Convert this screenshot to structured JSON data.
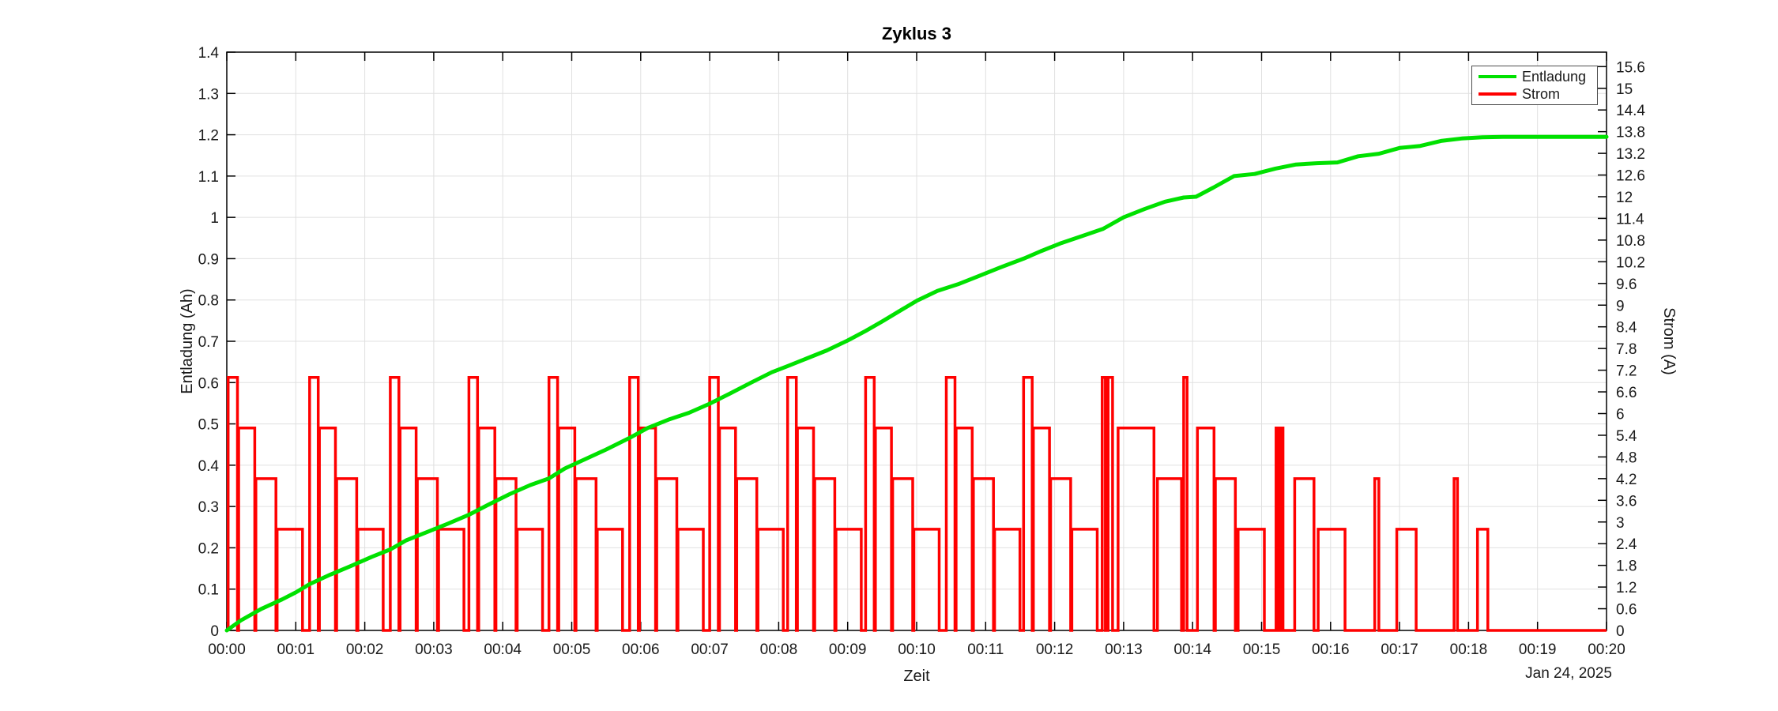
{
  "chart_data": {
    "type": "line",
    "title": "Zyklus 3",
    "xlabel": "Zeit",
    "x_date_annotation": "Jan 24, 2025",
    "ylabel_left": "Entladung (Ah)",
    "ylabel_right": "Strom (A)",
    "x_range_minutes": [
      0,
      20
    ],
    "y_left_range_ah": [
      0,
      1.4
    ],
    "y_right_range_a": [
      0,
      16
    ],
    "grid": true,
    "legend": {
      "position": "top-right",
      "items": [
        {
          "label": "Entladung",
          "color": "#00e100"
        },
        {
          "label": "Strom",
          "color": "#ff0000"
        }
      ]
    },
    "x_ticks": [
      [
        0,
        "00:00"
      ],
      [
        1,
        "00:01"
      ],
      [
        2,
        "00:02"
      ],
      [
        3,
        "00:03"
      ],
      [
        4,
        "00:04"
      ],
      [
        5,
        "00:05"
      ],
      [
        6,
        "00:06"
      ],
      [
        7,
        "00:07"
      ],
      [
        8,
        "00:08"
      ],
      [
        9,
        "00:09"
      ],
      [
        10,
        "00:10"
      ],
      [
        11,
        "00:11"
      ],
      [
        12,
        "00:12"
      ],
      [
        13,
        "00:13"
      ],
      [
        14,
        "00:14"
      ],
      [
        15,
        "00:15"
      ],
      [
        16,
        "00:16"
      ],
      [
        17,
        "00:17"
      ],
      [
        18,
        "00:18"
      ],
      [
        19,
        "00:19"
      ],
      [
        20,
        "00:20"
      ]
    ],
    "y_left_ticks": [
      [
        0,
        "0"
      ],
      [
        0.1,
        "0.1"
      ],
      [
        0.2,
        "0.2"
      ],
      [
        0.3,
        "0.3"
      ],
      [
        0.4,
        "0.4"
      ],
      [
        0.5,
        "0.5"
      ],
      [
        0.6,
        "0.6"
      ],
      [
        0.7,
        "0.7"
      ],
      [
        0.8,
        "0.8"
      ],
      [
        0.9,
        "0.9"
      ],
      [
        1,
        "1"
      ],
      [
        1.1,
        "1.1"
      ],
      [
        1.2,
        "1.2"
      ],
      [
        1.3,
        "1.3"
      ],
      [
        1.4,
        "1.4"
      ]
    ],
    "y_right_ticks": [
      [
        0,
        "0"
      ],
      [
        0.6,
        "0.6"
      ],
      [
        1.2,
        "1.2"
      ],
      [
        1.8,
        "1.8"
      ],
      [
        2.4,
        "2.4"
      ],
      [
        3,
        "3"
      ],
      [
        3.6,
        "3.6"
      ],
      [
        4.2,
        "4.2"
      ],
      [
        4.8,
        "4.8"
      ],
      [
        5.4,
        "5.4"
      ],
      [
        6,
        "6"
      ],
      [
        6.6,
        "6.6"
      ],
      [
        7.2,
        "7.2"
      ],
      [
        7.8,
        "7.8"
      ],
      [
        8.4,
        "8.4"
      ],
      [
        9,
        "9"
      ],
      [
        9.6,
        "9.6"
      ],
      [
        10.2,
        "10.2"
      ],
      [
        10.8,
        "10.8"
      ],
      [
        11.4,
        "11.4"
      ],
      [
        12,
        "12"
      ],
      [
        12.6,
        "12.6"
      ],
      [
        13.2,
        "13.2"
      ],
      [
        13.8,
        "13.8"
      ],
      [
        14.4,
        "14.4"
      ],
      [
        15,
        "15"
      ],
      [
        15.6,
        "15.6"
      ]
    ],
    "series": [
      {
        "name": "Entladung",
        "yaxis": "left",
        "unit": "Ah",
        "color": "#00e100",
        "line_width": 5,
        "points_t_min_ah": [
          [
            0,
            0
          ],
          [
            0.2,
            0.024
          ],
          [
            0.5,
            0.052
          ],
          [
            0.8,
            0.075
          ],
          [
            1,
            0.092
          ],
          [
            1.2,
            0.112
          ],
          [
            1.5,
            0.135
          ],
          [
            1.8,
            0.156
          ],
          [
            2.1,
            0.178
          ],
          [
            2.37,
            0.196
          ],
          [
            2.6,
            0.218
          ],
          [
            2.9,
            0.238
          ],
          [
            3.2,
            0.258
          ],
          [
            3.51,
            0.28
          ],
          [
            3.8,
            0.305
          ],
          [
            4.1,
            0.33
          ],
          [
            4.4,
            0.352
          ],
          [
            4.67,
            0.368
          ],
          [
            4.9,
            0.392
          ],
          [
            5.2,
            0.415
          ],
          [
            5.5,
            0.438
          ],
          [
            5.84,
            0.466
          ],
          [
            6.1,
            0.49
          ],
          [
            6.4,
            0.51
          ],
          [
            6.7,
            0.527
          ],
          [
            7,
            0.549
          ],
          [
            7.3,
            0.574
          ],
          [
            7.6,
            0.6
          ],
          [
            7.9,
            0.625
          ],
          [
            8.13,
            0.64
          ],
          [
            8.4,
            0.658
          ],
          [
            8.7,
            0.678
          ],
          [
            9,
            0.702
          ],
          [
            9.26,
            0.725
          ],
          [
            9.5,
            0.748
          ],
          [
            9.8,
            0.778
          ],
          [
            10,
            0.798
          ],
          [
            10.3,
            0.822
          ],
          [
            10.6,
            0.838
          ],
          [
            10.9,
            0.858
          ],
          [
            11.2,
            0.878
          ],
          [
            11.55,
            0.9
          ],
          [
            11.8,
            0.918
          ],
          [
            12.1,
            0.938
          ],
          [
            12.4,
            0.955
          ],
          [
            12.7,
            0.972
          ],
          [
            13,
            1.0
          ],
          [
            13.3,
            1.02
          ],
          [
            13.6,
            1.038
          ],
          [
            13.87,
            1.048
          ],
          [
            14.05,
            1.05
          ],
          [
            14.3,
            1.072
          ],
          [
            14.6,
            1.1
          ],
          [
            14.9,
            1.105
          ],
          [
            15.2,
            1.118
          ],
          [
            15.5,
            1.128
          ],
          [
            15.8,
            1.131
          ],
          [
            16.1,
            1.133
          ],
          [
            16.4,
            1.148
          ],
          [
            16.7,
            1.154
          ],
          [
            17,
            1.168
          ],
          [
            17.3,
            1.173
          ],
          [
            17.6,
            1.185
          ],
          [
            17.9,
            1.191
          ],
          [
            18.2,
            1.194
          ],
          [
            18.5,
            1.195
          ],
          [
            19,
            1.195
          ],
          [
            19.5,
            1.195
          ],
          [
            20,
            1.195
          ]
        ]
      },
      {
        "name": "Strom",
        "yaxis": "right",
        "unit": "A",
        "color": "#ff0000",
        "line_width": 3.5,
        "baseline_a": 0,
        "pulse_segments_t_min_a": [
          [
            0.02,
            0.155,
            7
          ],
          [
            0.172,
            0.405,
            5.6
          ],
          [
            0.422,
            0.713,
            4.2
          ],
          [
            0.73,
            1.097,
            2.8
          ],
          [
            1.2,
            1.325,
            7
          ],
          [
            1.342,
            1.575,
            5.6
          ],
          [
            1.592,
            1.883,
            4.2
          ],
          [
            1.9,
            2.267,
            2.8
          ],
          [
            2.37,
            2.495,
            7
          ],
          [
            2.512,
            2.745,
            5.6
          ],
          [
            2.762,
            3.053,
            4.2
          ],
          [
            3.07,
            3.437,
            2.8
          ],
          [
            3.51,
            3.635,
            7
          ],
          [
            3.652,
            3.885,
            5.6
          ],
          [
            3.902,
            4.193,
            4.2
          ],
          [
            4.21,
            4.577,
            2.8
          ],
          [
            4.67,
            4.795,
            7
          ],
          [
            4.812,
            5.045,
            5.6
          ],
          [
            5.062,
            5.353,
            4.2
          ],
          [
            5.37,
            5.737,
            2.8
          ],
          [
            5.84,
            5.965,
            7
          ],
          [
            5.982,
            6.215,
            5.6
          ],
          [
            6.232,
            6.523,
            4.2
          ],
          [
            6.54,
            6.907,
            2.8
          ],
          [
            7.0,
            7.125,
            7
          ],
          [
            7.142,
            7.375,
            5.6
          ],
          [
            7.392,
            7.683,
            4.2
          ],
          [
            7.7,
            8.067,
            2.8
          ],
          [
            8.13,
            8.255,
            7
          ],
          [
            8.272,
            8.505,
            5.6
          ],
          [
            8.522,
            8.813,
            4.2
          ],
          [
            8.83,
            9.197,
            2.8
          ],
          [
            9.26,
            9.385,
            7
          ],
          [
            9.402,
            9.635,
            5.6
          ],
          [
            9.652,
            9.943,
            4.2
          ],
          [
            9.96,
            10.327,
            2.8
          ],
          [
            10.43,
            10.555,
            7
          ],
          [
            10.572,
            10.805,
            5.6
          ],
          [
            10.822,
            11.113,
            4.2
          ],
          [
            11.13,
            11.497,
            2.8
          ],
          [
            11.55,
            11.675,
            7
          ],
          [
            11.692,
            11.925,
            5.6
          ],
          [
            11.942,
            12.233,
            4.2
          ],
          [
            12.25,
            12.617,
            2.8
          ],
          [
            12.69,
            12.735,
            7
          ],
          [
            12.775,
            12.84,
            7
          ],
          [
            12.92,
            13.44,
            5.6
          ],
          [
            13.49,
            13.84,
            4.2
          ],
          [
            13.87,
            13.92,
            7
          ],
          [
            14.07,
            14.31,
            5.6
          ],
          [
            14.33,
            14.62,
            4.2
          ],
          [
            14.66,
            15.04,
            2.8
          ],
          [
            15.21,
            15.245,
            5.6
          ],
          [
            15.275,
            15.31,
            5.6
          ],
          [
            15.48,
            15.76,
            4.2
          ],
          [
            15.82,
            16.21,
            2.8
          ],
          [
            16.64,
            16.7,
            4.2
          ],
          [
            16.96,
            17.24,
            2.8
          ],
          [
            17.79,
            17.84,
            4.2
          ],
          [
            18.13,
            18.28,
            2.8
          ]
        ]
      }
    ]
  }
}
